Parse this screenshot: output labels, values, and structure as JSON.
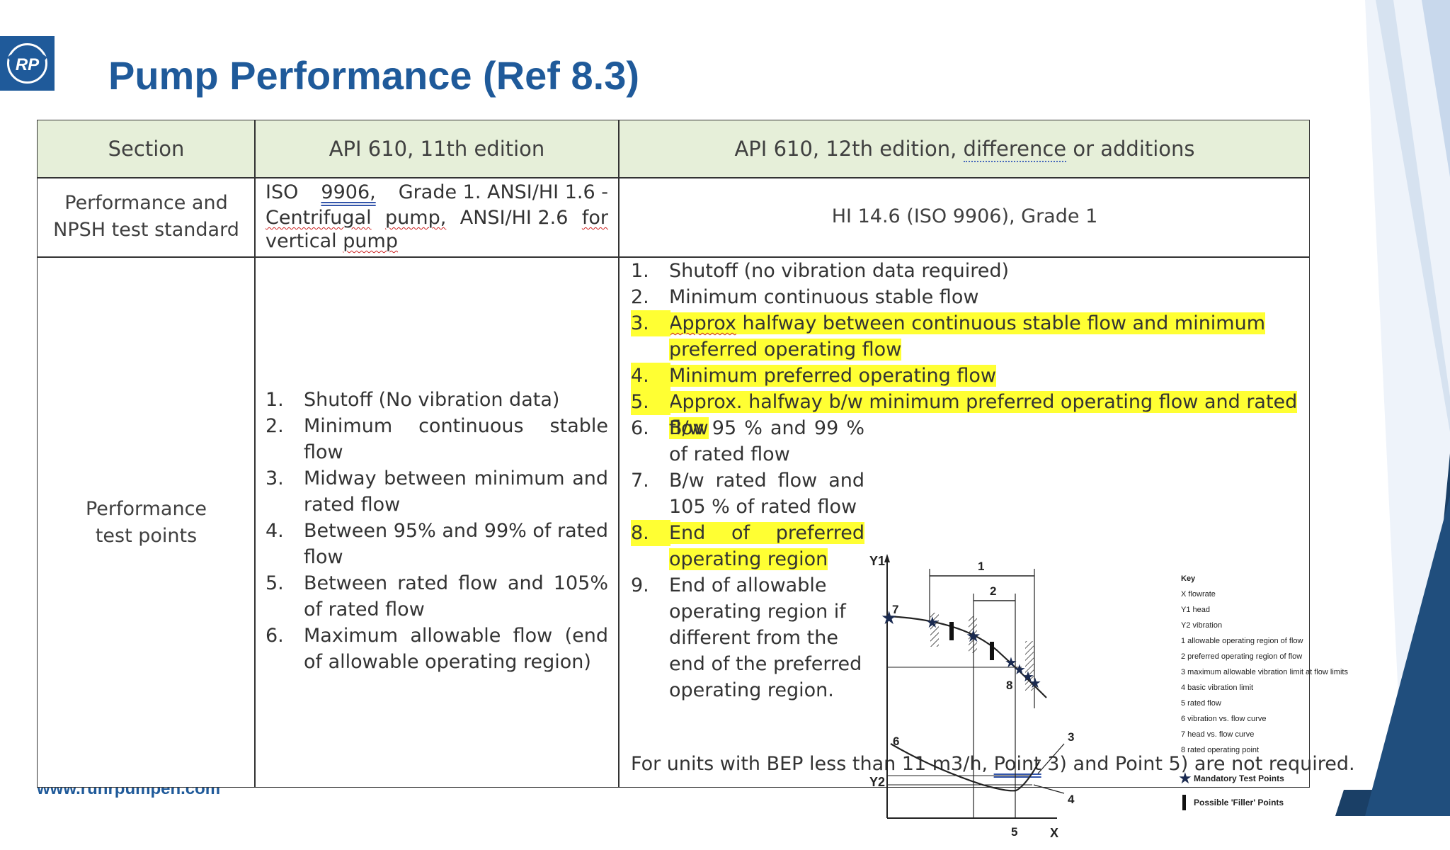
{
  "slide": {
    "title": "Pump Performance (Ref 8.3)",
    "logo_text": "RP",
    "footer_url": "www.ruhrpumpen.com"
  },
  "colors": {
    "accent": "#1f5a9a",
    "header_bg": "#e6efd9",
    "highlight": "#ffff33"
  },
  "table": {
    "headers": [
      "Section",
      "API 610, 11th edition",
      "API 610, 12th edition, difference or additions"
    ],
    "rows": [
      {
        "section": "Performance and NPSH test standard",
        "ed11": {
          "t1": "ISO",
          "t2": "9906,",
          "t3": "Grade 1. ANSI/HI 1.6 -",
          "t4": "Centrifugal",
          "t5": "pump,",
          "t6": "ANSI/HI 2.6",
          "t7": "for",
          "t8": "vertical",
          "t9": "pump"
        },
        "ed12": "HI 14.6 (ISO 9906), Grade 1"
      },
      {
        "section": "Performance test points",
        "ed11_items": [
          {
            "num": "1.",
            "text": "Shutoff (No vibration data)"
          },
          {
            "num": "2.",
            "text": "Minimum continuous stable flow"
          },
          {
            "num": "3.",
            "text": "Midway between minimum and rated flow"
          },
          {
            "num": "4.",
            "text": "Between 95% and 99% of rated flow"
          },
          {
            "num": "5.",
            "text": "Between rated flow and 105% of rated flow"
          },
          {
            "num": "6.",
            "text": "Maximum allowable flow (end of allowable operating region)"
          }
        ],
        "ed12_items": [
          {
            "num": "1.",
            "text": "Shutoff (no vibration data required)"
          },
          {
            "num": "2.",
            "text": "Minimum continuous stable flow"
          },
          {
            "num": "3.",
            "text_a": "Approx",
            "text_b": " halfway between continuous stable flow and minimum preferred operating flow"
          },
          {
            "num": "4.",
            "text": "Minimum preferred operating flow"
          },
          {
            "num": "5.",
            "text": "Approx. halfway b/w minimum preferred operating flow and rated flow"
          },
          {
            "num": "6.",
            "text": "B/w 95 % and 99 % of rated flow"
          },
          {
            "num": "7.",
            "text": "B/w rated flow and 105 % of rated flow"
          },
          {
            "num": "8.",
            "text": "End of preferred operating region"
          },
          {
            "num": "9.",
            "text": "End of allowable operating region if different from the end of the preferred operating region."
          }
        ],
        "ed12_note": {
          "a": "For units with BEP less than 11 m3/h, ",
          "b": "Point",
          "c": " 3) and Point 5) are not required."
        }
      }
    ]
  },
  "figure": {
    "axis": {
      "y1": "Y1",
      "y2": "Y2",
      "x": "X"
    },
    "callouts": {
      "n1": "1",
      "n2": "2",
      "n3": "3",
      "n4": "4",
      "n5": "5",
      "n6": "6",
      "n7": "7",
      "n8": "8"
    },
    "key_title": "Key",
    "key_items": [
      "X   flowrate",
      "Y1  head",
      "Y2  vibration",
      "1    allowable operating region of flow",
      "2    preferred operating region of flow",
      "3    maximum allowable vibration limit at flow limits",
      "4    basic vibration limit",
      "5 rated flow",
      "6 vibration vs. flow curve",
      "7 head vs. flow curve",
      "8 rated operating point"
    ],
    "legend": {
      "mandatory": "Mandatory Test Points",
      "filler": "Possible 'Filler' Points"
    }
  }
}
